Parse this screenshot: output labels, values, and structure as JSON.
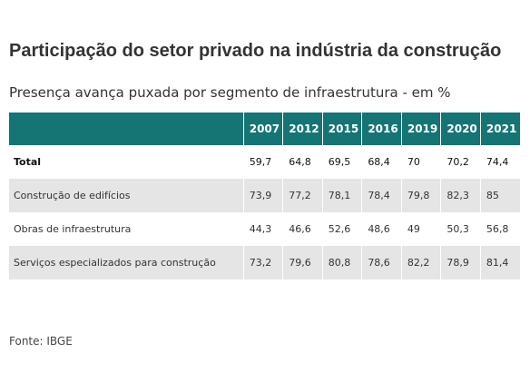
{
  "title": "Participação do setor privado na indústria da construção",
  "subtitle": "Presença avança puxada por segmento de infraestrutura - em %",
  "source": "Fonte: IBGE",
  "colors": {
    "header_bg": "#147574",
    "header_text": "#ffffff",
    "row_shade": "#e5e5e5"
  },
  "chart_data": {
    "type": "table",
    "title": "Participação do setor privado na indústria da construção",
    "subtitle": "Presença avança puxada por segmento de infraestrutura - em %",
    "columns": [
      "2007",
      "2012",
      "2015",
      "2016",
      "2019",
      "2020",
      "2021"
    ],
    "rows": [
      {
        "label": "Total",
        "values": [
          "59,7",
          "64,8",
          "69,5",
          "68,4",
          "70",
          "70,2",
          "74,4"
        ]
      },
      {
        "label": "Construção de edifícios",
        "values": [
          "73,9",
          "77,2",
          "78,1",
          "78,4",
          "79,8",
          "82,3",
          "85"
        ]
      },
      {
        "label": "Obras de infraestrutura",
        "values": [
          "44,3",
          "46,6",
          "52,6",
          "48,6",
          "49",
          "50,3",
          "56,8"
        ]
      },
      {
        "label": "Serviços especializados para construção",
        "values": [
          "73,2",
          "79,6",
          "80,8",
          "78,6",
          "82,2",
          "78,9",
          "81,4"
        ]
      }
    ],
    "source": "Fonte: IBGE"
  }
}
